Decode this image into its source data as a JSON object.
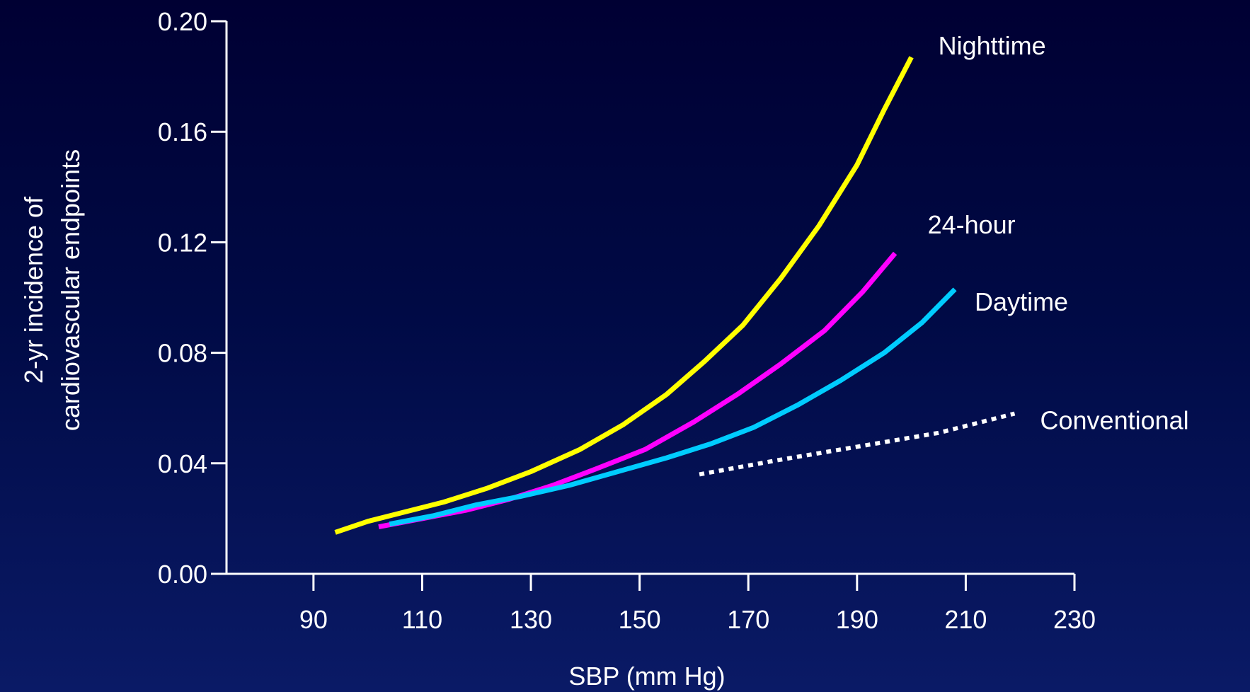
{
  "chart_data": {
    "type": "line",
    "title": "",
    "xlabel": "SBP (mm Hg)",
    "ylabel_lines": [
      "2-yr incidence of",
      "cardiovascular endpoints"
    ],
    "xlim": [
      74,
      230
    ],
    "ylim": [
      0,
      0.2
    ],
    "x_ticks": [
      90,
      110,
      130,
      150,
      170,
      190,
      210,
      230
    ],
    "y_ticks": [
      0.0,
      0.04,
      0.08,
      0.12,
      0.16,
      0.2
    ],
    "y_tick_labels": [
      "0.00",
      "0.04",
      "0.08",
      "0.12",
      "0.16",
      "0.20"
    ],
    "grid": false,
    "legend": "labels placed at series ends",
    "series": [
      {
        "name": "Nighttime",
        "color": "#ffff00",
        "style": "solid",
        "x": [
          94,
          100,
          106,
          114,
          122,
          130,
          139,
          147,
          155,
          162,
          169,
          176,
          183,
          190,
          195,
          200
        ],
        "y": [
          0.015,
          0.019,
          0.022,
          0.026,
          0.031,
          0.037,
          0.045,
          0.054,
          0.065,
          0.077,
          0.09,
          0.107,
          0.126,
          0.148,
          0.168,
          0.187
        ]
      },
      {
        "name": "24-hour",
        "color": "#ff00ff",
        "style": "solid",
        "x": [
          102,
          110,
          118,
          126,
          134,
          142,
          151,
          160,
          168,
          176,
          184,
          191,
          197
        ],
        "y": [
          0.017,
          0.02,
          0.023,
          0.027,
          0.032,
          0.038,
          0.045,
          0.055,
          0.065,
          0.076,
          0.088,
          0.102,
          0.116
        ]
      },
      {
        "name": "Daytime",
        "color": "#00ccff",
        "style": "solid",
        "x": [
          104,
          112,
          120,
          128,
          137,
          146,
          155,
          163,
          171,
          179,
          187,
          195,
          202,
          208
        ],
        "y": [
          0.018,
          0.021,
          0.025,
          0.028,
          0.032,
          0.037,
          0.042,
          0.047,
          0.053,
          0.061,
          0.07,
          0.08,
          0.091,
          0.103
        ]
      },
      {
        "name": "Conventional",
        "color": "#ffffff",
        "style": "dotted",
        "x": [
          161,
          175,
          190,
          205,
          219
        ],
        "y": [
          0.036,
          0.041,
          0.046,
          0.051,
          0.058
        ]
      }
    ]
  }
}
